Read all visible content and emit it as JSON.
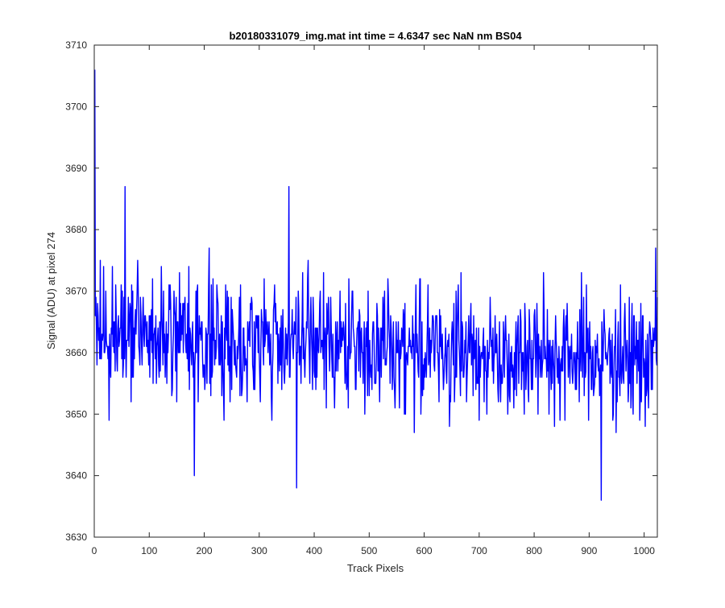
{
  "chart_data": {
    "type": "line",
    "title": "b20180331079_img.mat int time = 4.6347 sec  NaN nm BS04",
    "xlabel": "Track Pixels",
    "ylabel": "Signal (ADU) at pixel 274",
    "xlim": [
      0,
      1024
    ],
    "ylim": [
      3630,
      3710
    ],
    "xticks": [
      0,
      100,
      200,
      300,
      400,
      500,
      600,
      700,
      800,
      900,
      1000
    ],
    "yticks": [
      3630,
      3640,
      3650,
      3660,
      3670,
      3680,
      3690,
      3700,
      3710
    ],
    "grid": false,
    "series": [
      {
        "color": "#0000ff",
        "n_points": 1024,
        "x_start": 1,
        "notable_points": [
          {
            "x": 1,
            "y": 3706
          },
          {
            "x": 56,
            "y": 3687
          },
          {
            "x": 354,
            "y": 3687
          },
          {
            "x": 368,
            "y": 3638
          },
          {
            "x": 182,
            "y": 3640
          },
          {
            "x": 922,
            "y": 3636
          },
          {
            "x": 1021,
            "y": 3677
          }
        ],
        "mean_start": 3663,
        "mean_end": 3659,
        "amplitude": 5
      }
    ]
  }
}
